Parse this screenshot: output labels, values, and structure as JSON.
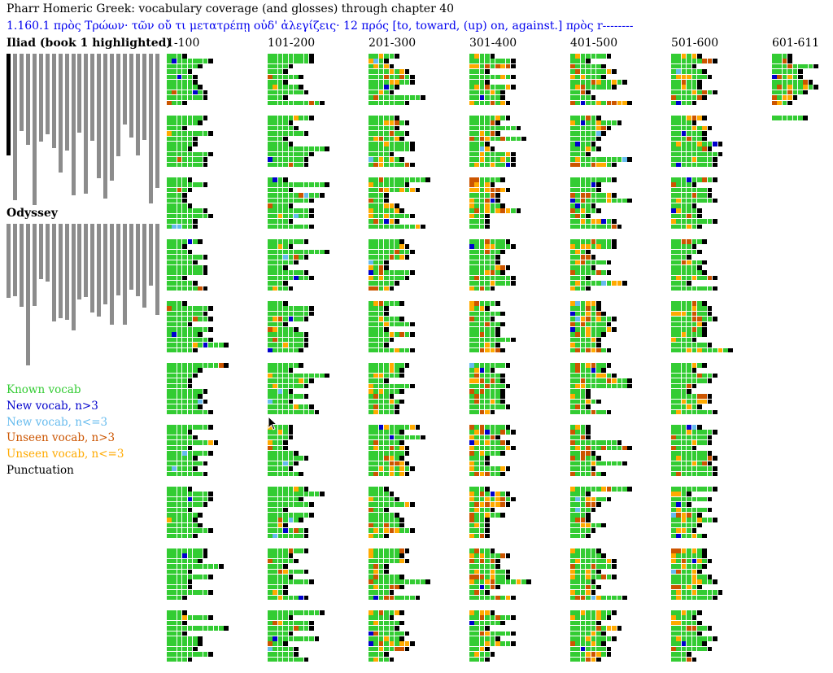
{
  "title": "Pharr Homeric Greek: vocabulary coverage (and glosses) through chapter 40",
  "gloss": "1.160.1 πρὸς Τρώων· τῶν οὔ τι μετατρέπῃ οὐδ' ἀλεγίζεις· 12 πρός [to, toward, (up) on, against.] πρὸς r--------",
  "iliad_label": "Iliad (book 1 highlighted)",
  "odyssey_label": "Odyssey",
  "ranges": [
    "1-100",
    "101-200",
    "201-300",
    "301-400",
    "401-500",
    "501-600",
    "601-611"
  ],
  "legend": {
    "known": {
      "label": "Known vocab",
      "color": "#33cc33"
    },
    "new_gt3": {
      "label": "New vocab, n>3",
      "color": "#0000cc"
    },
    "new_le3": {
      "label": "New vocab, n<=3",
      "color": "#66bbee"
    },
    "unseen_gt3": {
      "label": "Unseen vocab, n>3",
      "color": "#cc5500"
    },
    "unseen_le3": {
      "label": "Unseen vocab, n<=3",
      "color": "#ffaa00"
    },
    "punct": {
      "label": "Punctuation",
      "color": "#000000"
    }
  },
  "iliad_books": [
    1,
    2,
    3,
    4,
    5,
    6,
    7,
    8,
    9,
    10,
    11,
    12,
    13,
    14,
    15,
    16,
    17,
    18,
    19,
    20,
    21,
    22,
    23,
    24
  ],
  "iliad_book_lengths": [
    611,
    877,
    461,
    544,
    909,
    529,
    482,
    565,
    713,
    579,
    848,
    471,
    837,
    522,
    746,
    867,
    761,
    617,
    424,
    503,
    611,
    516,
    897,
    804
  ],
  "odyssey_books": [
    1,
    2,
    3,
    4,
    5,
    6,
    7,
    8,
    9,
    10,
    11,
    12,
    13,
    14,
    15,
    16,
    17,
    18,
    19,
    20,
    21,
    22,
    23,
    24
  ],
  "odyssey_book_lengths": [
    444,
    434,
    497,
    847,
    493,
    331,
    347,
    586,
    566,
    574,
    640,
    453,
    440,
    533,
    557,
    481,
    606,
    428,
    604,
    394,
    434,
    501,
    372,
    548
  ],
  "highlighted_book": 1,
  "lines_per_block": 10,
  "blocks_per_column": 10
}
